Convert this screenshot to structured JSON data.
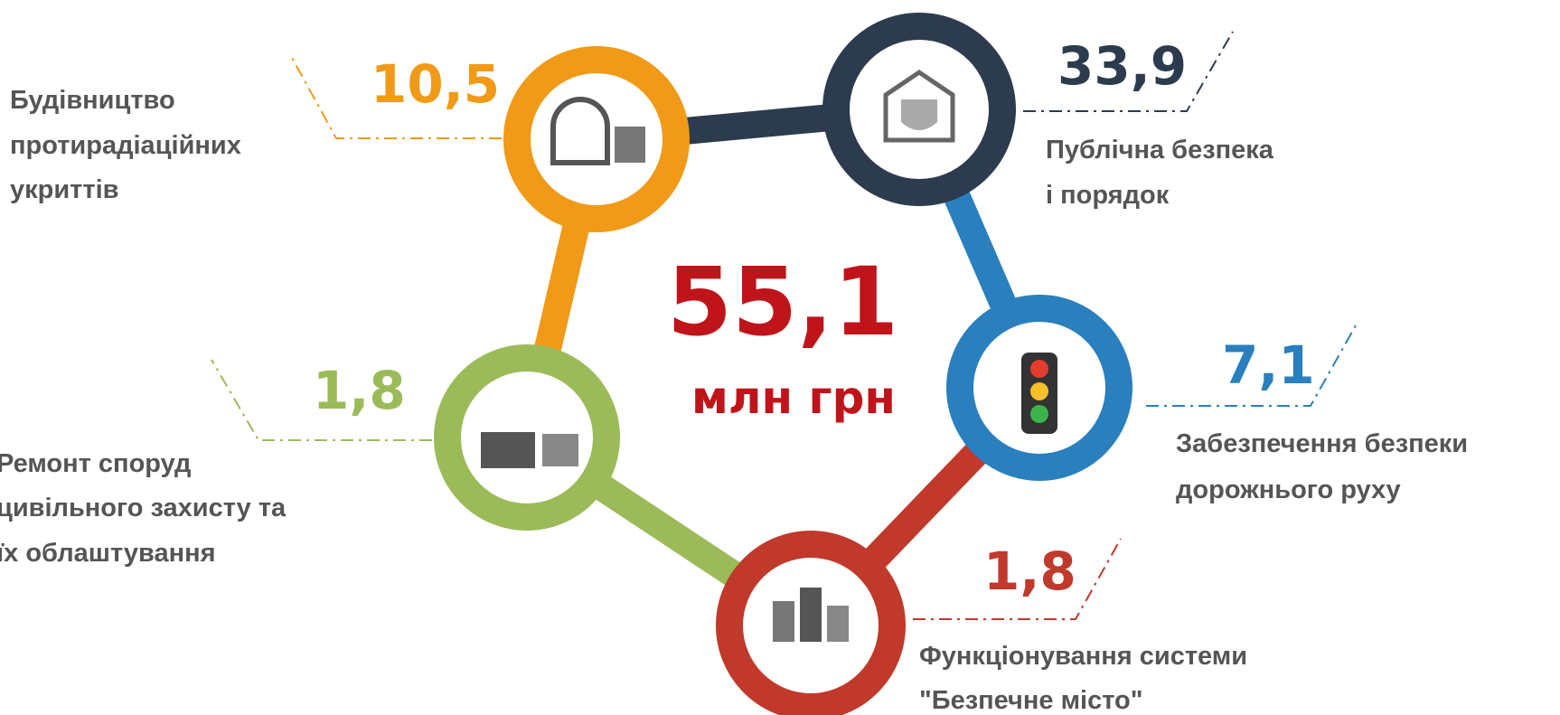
{
  "total": {
    "value": "55,1",
    "unit": "млн грн"
  },
  "items": [
    {
      "value": "10,5",
      "label": [
        "Будівництво",
        "протирадіаційних",
        "укриттів"
      ]
    },
    {
      "value": "33,9",
      "label": [
        "Публічна безпека",
        "і порядок"
      ]
    },
    {
      "value": "7,1",
      "label": [
        "Забезпечення безпеки",
        "дорожнього руху"
      ]
    },
    {
      "value": "1,8",
      "label": [
        "Функціонування системи",
        "\"Безпечне місто\""
      ]
    },
    {
      "value": "1,8",
      "label": [
        "Ремонт споруд",
        "цивільного захисту та",
        "їх облаштування"
      ]
    }
  ]
}
